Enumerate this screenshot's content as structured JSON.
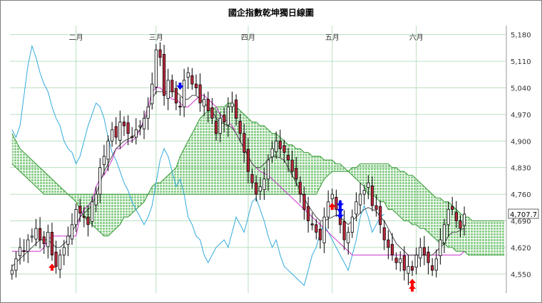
{
  "chart_data": {
    "type": "candlestick-ichimoku",
    "title": "國企指數乾坤獨日線圖",
    "xlabel": "",
    "ylabel": "",
    "ylim": [
      4500,
      5200
    ],
    "y_ticks": [
      "5,180",
      "5,110",
      "5,040",
      "4,970",
      "4,900",
      "4,830",
      "4,760",
      "4,690",
      "4,620",
      "4,550"
    ],
    "y_tick_values": [
      5180,
      5110,
      5040,
      4970,
      4900,
      4830,
      4760,
      4690,
      4620,
      4550
    ],
    "months": [
      {
        "label": "二月",
        "index": 16
      },
      {
        "label": "三月",
        "index": 36
      },
      {
        "label": "四月",
        "index": 59
      },
      {
        "label": "五月",
        "index": 80
      },
      {
        "label": "六月",
        "index": 101
      }
    ],
    "last_price_label": "4,707.7",
    "last_price": 4707.7,
    "n_bars": 114,
    "n_total": 124,
    "candles_close": [
      4560,
      4590,
      4620,
      4610,
      4640,
      4650,
      4670,
      4640,
      4630,
      4660,
      4600,
      4570,
      4600,
      4620,
      4650,
      4680,
      4720,
      4710,
      4700,
      4680,
      4740,
      4760,
      4830,
      4860,
      4900,
      4930,
      4910,
      4950,
      4940,
      4920,
      4910,
      4930,
      4940,
      4960,
      4990,
      5050,
      5140,
      5120,
      5020,
      5060,
      5030,
      5000,
      4990,
      5060,
      5080,
      5050,
      5040,
      5000,
      5010,
      4980,
      4960,
      4920,
      4960,
      4950,
      4990,
      5000,
      4960,
      4920,
      4870,
      4820,
      4790,
      4760,
      4780,
      4800,
      4850,
      4880,
      4900,
      4880,
      4870,
      4850,
      4820,
      4800,
      4760,
      4720,
      4690,
      4680,
      4660,
      4640,
      4700,
      4740,
      4760,
      4720,
      4680,
      4640,
      4660,
      4700,
      4740,
      4760,
      4770,
      4790,
      4730,
      4720,
      4680,
      4640,
      4620,
      4600,
      4580,
      4590,
      4560,
      4570,
      4560,
      4600,
      4620,
      4600,
      4580,
      4560,
      4590,
      4640,
      4680,
      4720,
      4720,
      4690,
      4670,
      4707.7
    ],
    "tenkan": [
      4570,
      4580,
      4590,
      4600,
      4610,
      4620,
      4630,
      4640,
      4640,
      4640,
      4630,
      4620,
      4620,
      4630,
      4640,
      4660,
      4680,
      4700,
      4710,
      4720,
      4730,
      4760,
      4790,
      4820,
      4840,
      4860,
      4880,
      4890,
      4900,
      4905,
      4910,
      4920,
      4930,
      4950,
      4980,
      5010,
      5030,
      5030,
      5030,
      5030,
      5030,
      5030,
      5020,
      5010,
      5010,
      5020,
      5020,
      5010,
      5000,
      4990,
      4980,
      4960,
      4950,
      4945,
      4940,
      4935,
      4920,
      4900,
      4880,
      4860,
      4840,
      4830,
      4830,
      4840,
      4850,
      4860,
      4860,
      4855,
      4850,
      4830,
      4810,
      4790,
      4770,
      4750,
      4730,
      4715,
      4700,
      4690,
      4690,
      4695,
      4700,
      4705,
      4700,
      4690,
      4680,
      4690,
      4700,
      4710,
      4720,
      4725,
      4720,
      4715,
      4700,
      4690,
      4670,
      4650,
      4630,
      4620,
      4610,
      4600,
      4600,
      4600,
      4600,
      4600,
      4600,
      4600,
      4610,
      4620,
      4630,
      4650,
      4660,
      4660,
      4665,
      4670
    ],
    "kijun": [
      4610,
      4610,
      4610,
      4610,
      4610,
      4610,
      4610,
      4610,
      4620,
      4640,
      4650,
      4650,
      4650,
      4650,
      4650,
      4650,
      4650,
      4700,
      4720,
      4730,
      4740,
      4780,
      4800,
      4810,
      4830,
      4850,
      4880,
      4880,
      4890,
      4900,
      4900,
      4910,
      4930,
      4960,
      4990,
      5030,
      5040,
      5040,
      5030,
      5020,
      5010,
      5010,
      5000,
      4990,
      4990,
      5000,
      5010,
      5020,
      5020,
      5010,
      5000,
      4990,
      4970,
      4960,
      4950,
      4940,
      4920,
      4900,
      4880,
      4860,
      4840,
      4830,
      4820,
      4815,
      4810,
      4800,
      4790,
      4780,
      4770,
      4760,
      4750,
      4740,
      4730,
      4720,
      4710,
      4700,
      4690,
      4680,
      4670,
      4660,
      4650,
      4640,
      4630,
      4620,
      4610,
      4600,
      4600,
      4600,
      4600,
      4600,
      4600,
      4600,
      4600,
      4600,
      4600,
      4600,
      4600,
      4600,
      4600,
      4600,
      4600,
      4600,
      4600,
      4600,
      4600,
      4600,
      4600,
      4600,
      4600,
      4600,
      4600,
      4600,
      4600,
      4610
    ],
    "senkou_a": [
      4920,
      4900,
      4880,
      4870,
      4860,
      4850,
      4840,
      4830,
      4820,
      4810,
      4800,
      4790,
      4780,
      4770,
      4760,
      4750,
      4740,
      4720,
      4700,
      4690,
      4680,
      4670,
      4660,
      4650,
      4650,
      4660,
      4670,
      4680,
      4700,
      4700,
      4710,
      4720,
      4730,
      4740,
      4760,
      4780,
      4790,
      4790,
      4800,
      4810,
      4820,
      4830,
      4860,
      4880,
      4900,
      4920,
      4940,
      4960,
      4970,
      4980,
      4980,
      4990,
      4990,
      4990,
      5000,
      5000,
      4990,
      4980,
      4970,
      4960,
      4950,
      4950,
      4940,
      4940,
      4930,
      4920,
      4920,
      4910,
      4900,
      4890,
      4890,
      4880,
      4880,
      4870,
      4870,
      4860,
      4860,
      4860,
      4850,
      4850,
      4850,
      4840,
      4840,
      4830,
      4820,
      4810,
      4800,
      4790,
      4780,
      4760,
      4760,
      4750,
      4740,
      4740,
      4720,
      4720,
      4710,
      4700,
      4690,
      4690,
      4680,
      4680,
      4670,
      4670,
      4660,
      4650,
      4640,
      4630,
      4630,
      4620,
      4620,
      4610,
      4610,
      4610,
      4600,
      4600,
      4600,
      4600,
      4600,
      4600,
      4600,
      4600,
      4600,
      4600
    ],
    "senkou_b": [
      4840,
      4830,
      4820,
      4810,
      4800,
      4790,
      4780,
      4770,
      4760,
      4760,
      4760,
      4760,
      4760,
      4760,
      4760,
      4760,
      4760,
      4760,
      4760,
      4760,
      4760,
      4760,
      4760,
      4760,
      4760,
      4760,
      4760,
      4760,
      4760,
      4760,
      4760,
      4760,
      4760,
      4760,
      4760,
      4760,
      4760,
      4760,
      4760,
      4760,
      4760,
      4760,
      4760,
      4760,
      4760,
      4760,
      4760,
      4760,
      4760,
      4760,
      4760,
      4760,
      4760,
      4760,
      4760,
      4760,
      4760,
      4760,
      4760,
      4760,
      4760,
      4760,
      4760,
      4760,
      4760,
      4760,
      4760,
      4760,
      4760,
      4760,
      4760,
      4760,
      4760,
      4760,
      4760,
      4760,
      4760,
      4780,
      4800,
      4810,
      4820,
      4820,
      4820,
      4820,
      4820,
      4830,
      4830,
      4840,
      4840,
      4840,
      4840,
      4840,
      4840,
      4840,
      4840,
      4830,
      4830,
      4820,
      4820,
      4810,
      4810,
      4800,
      4790,
      4780,
      4770,
      4760,
      4750,
      4750,
      4740,
      4740,
      4730,
      4720,
      4710,
      4700,
      4700,
      4690,
      4690,
      4690,
      4690,
      4690,
      4690,
      4690,
      4690,
      4690
    ],
    "chikou": [
      4930,
      4910,
      4940,
      5020,
      5100,
      5150,
      5120,
      5080,
      5050,
      5030,
      4990,
      4960,
      4940,
      4900,
      4880,
      4870,
      4840,
      4860,
      4900,
      4940,
      4970,
      5000,
      4990,
      4960,
      4910,
      4870,
      4850,
      4820,
      4790,
      4770,
      4740,
      4720,
      4700,
      4680,
      4700,
      4730,
      4790,
      4850,
      4880,
      4860,
      4820,
      4780,
      4800,
      4760,
      4700,
      4680,
      4650,
      4640,
      4600,
      4580,
      4600,
      4620,
      4630,
      4640,
      4620,
      4660,
      4700,
      4680,
      4660,
      4700,
      4740,
      4750,
      4720,
      4690,
      4650,
      4620,
      4640,
      4600,
      4570,
      4560,
      4550,
      4540,
      4530,
      4520,
      4560,
      4600,
      4620,
      4660,
      4680,
      4660,
      4640,
      4620,
      4600,
      4580,
      4560,
      4600,
      4640,
      4700,
      4730,
      4700,
      4660,
      4680,
      4700,
      4707.7
    ],
    "signals": [
      {
        "index": 10,
        "kind": "up",
        "color": "#ff0000",
        "count": 1
      },
      {
        "index": 80,
        "kind": "up",
        "color": "#ff0000",
        "count": 1
      },
      {
        "index": 82,
        "kind": "down",
        "color": "#0000ff",
        "count": 3
      },
      {
        "index": 100,
        "kind": "up",
        "color": "#ff0000",
        "count": 2
      },
      {
        "index": 42,
        "kind": "down",
        "color": "#0000ff",
        "count": 1
      }
    ],
    "colors": {
      "candle_up": "#ffffff",
      "candle_down": "#c0283c",
      "candle_outline": "#000000",
      "tenkan": "#4a4a4a",
      "kijun": "#cc33cc",
      "chikou": "#33aadd",
      "cloud_edge": "#339933",
      "cloud_fill": "#8fcf8f",
      "grid": "#b9e0c0",
      "signal_up": "#ff0000",
      "signal_down": "#0000ff",
      "axis_text": "#333333"
    },
    "grid": true,
    "legend": "none"
  }
}
